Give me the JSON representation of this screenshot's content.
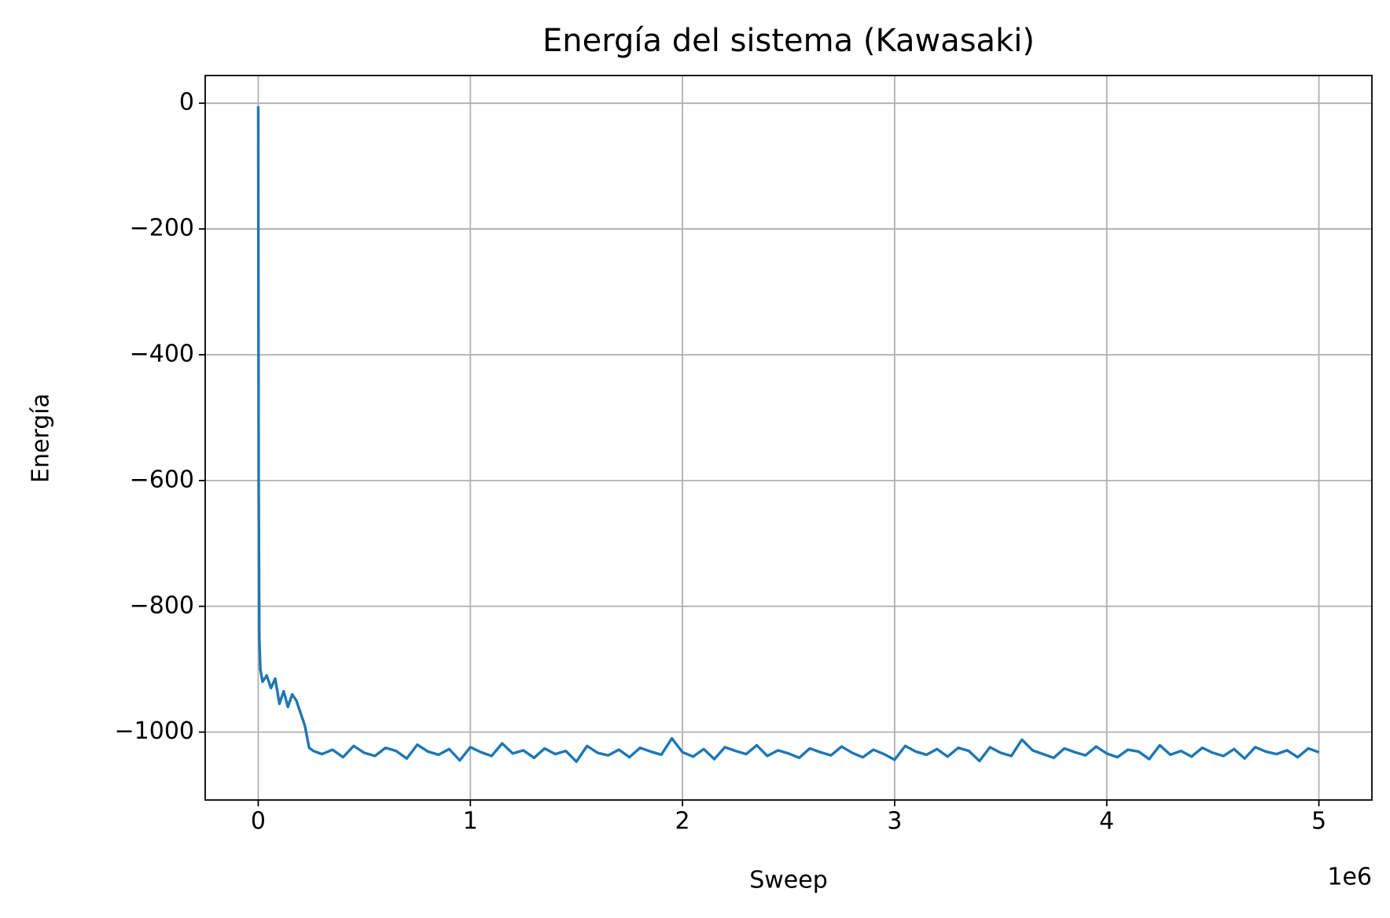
{
  "chart_data": {
    "type": "line",
    "title": "Energía del sistema (Kawasaki)",
    "x_label": "Sweep",
    "y_label": "Energía",
    "x_offset_label": "1e6",
    "xlim": [
      -250000,
      5250000
    ],
    "ylim": [
      -1108,
      44
    ],
    "xticks": [
      0,
      {
        "value": 1000000,
        "label": "1"
      },
      {
        "value": 2000000,
        "label": "2"
      },
      {
        "value": 3000000,
        "label": "3"
      },
      {
        "value": 4000000,
        "label": "4"
      },
      {
        "value": 5000000,
        "label": "5"
      }
    ],
    "yticks": [
      0,
      {
        "value": -200,
        "label": "−200"
      },
      {
        "value": -400,
        "label": "−400"
      },
      {
        "value": -600,
        "label": "−600"
      },
      {
        "value": -800,
        "label": "−800"
      },
      {
        "value": -1000,
        "label": "−1000"
      }
    ],
    "grid": true,
    "series": [
      {
        "color": "#1f77b4",
        "x": [
          0,
          2000,
          5000,
          10000,
          20000,
          40000,
          60000,
          80000,
          100000,
          120000,
          140000,
          160000,
          180000,
          200000,
          220000,
          240000,
          260000,
          300000,
          350000,
          400000,
          450000,
          500000,
          550000,
          600000,
          650000,
          700000,
          750000,
          800000,
          850000,
          900000,
          950000,
          1000000,
          1050000,
          1100000,
          1150000,
          1200000,
          1250000,
          1300000,
          1350000,
          1400000,
          1450000,
          1500000,
          1550000,
          1600000,
          1650000,
          1700000,
          1750000,
          1800000,
          1850000,
          1900000,
          1950000,
          2000000,
          2050000,
          2100000,
          2150000,
          2200000,
          2250000,
          2300000,
          2350000,
          2400000,
          2450000,
          2500000,
          2550000,
          2600000,
          2650000,
          2700000,
          2750000,
          2800000,
          2850000,
          2900000,
          2950000,
          3000000,
          3050000,
          3100000,
          3150000,
          3200000,
          3250000,
          3300000,
          3350000,
          3400000,
          3450000,
          3500000,
          3550000,
          3600000,
          3650000,
          3700000,
          3750000,
          3800000,
          3850000,
          3900000,
          3950000,
          4000000,
          4050000,
          4100000,
          4150000,
          4200000,
          4250000,
          4300000,
          4350000,
          4400000,
          4450000,
          4500000,
          4550000,
          4600000,
          4650000,
          4700000,
          4750000,
          4800000,
          4850000,
          4900000,
          4950000,
          5000000
        ],
        "values": [
          -5,
          -600,
          -850,
          -900,
          -920,
          -910,
          -930,
          -915,
          -955,
          -935,
          -960,
          -940,
          -950,
          -970,
          -990,
          -1025,
          -1030,
          -1035,
          -1028,
          -1040,
          -1022,
          -1033,
          -1038,
          -1025,
          -1030,
          -1042,
          -1020,
          -1031,
          -1036,
          -1027,
          -1045,
          -1024,
          -1032,
          -1038,
          -1018,
          -1034,
          -1029,
          -1041,
          -1026,
          -1035,
          -1030,
          -1047,
          -1022,
          -1033,
          -1037,
          -1028,
          -1040,
          -1025,
          -1031,
          -1036,
          -1010,
          -1032,
          -1039,
          -1027,
          -1043,
          -1024,
          -1030,
          -1035,
          -1021,
          -1038,
          -1029,
          -1034,
          -1041,
          -1026,
          -1032,
          -1037,
          -1023,
          -1033,
          -1040,
          -1028,
          -1035,
          -1044,
          -1022,
          -1031,
          -1036,
          -1027,
          -1039,
          -1025,
          -1030,
          -1046,
          -1024,
          -1033,
          -1038,
          -1012,
          -1029,
          -1035,
          -1041,
          -1026,
          -1032,
          -1037,
          -1023,
          -1034,
          -1040,
          -1028,
          -1031,
          -1043,
          -1021,
          -1036,
          -1030,
          -1039,
          -1025,
          -1033,
          -1038,
          -1027,
          -1042,
          -1024,
          -1031,
          -1035,
          -1029,
          -1040,
          -1026,
          -1032
        ]
      }
    ]
  }
}
